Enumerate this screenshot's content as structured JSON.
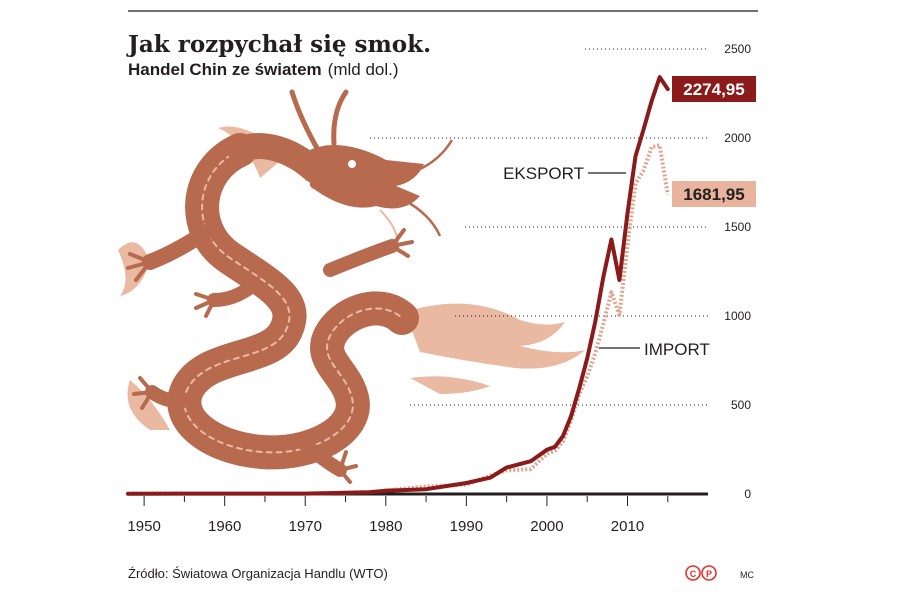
{
  "chart_data": {
    "type": "line",
    "title": "Jak rozpychał się smok.",
    "subtitle": "Handel Chin ze światem",
    "unit": "(mld dol.)",
    "xlabel": "",
    "ylabel": "",
    "xlim": [
      1948,
      2019
    ],
    "ylim": [
      0,
      2500
    ],
    "x_ticks": [
      1950,
      1960,
      1970,
      1980,
      1990,
      2000,
      2010
    ],
    "x_tick_labels": [
      "1950",
      "1960",
      "1970",
      "1980",
      "1990",
      "2000",
      "2010"
    ],
    "y_ticks": [
      0,
      500,
      1000,
      1500,
      2000,
      2500
    ],
    "y_tick_labels": [
      "0",
      "500",
      "1000",
      "1500",
      "2000",
      "2500"
    ],
    "grid": "dotted horizontal",
    "series": [
      {
        "name": "EKSPORT",
        "color": "#8b1a1a",
        "style": "solid",
        "x": [
          1948,
          1955,
          1965,
          1970,
          1975,
          1978,
          1980,
          1985,
          1990,
          1993,
          1995,
          1998,
          2000,
          2001,
          2002,
          2003,
          2004,
          2005,
          2006,
          2007,
          2008,
          2009,
          2010,
          2011,
          2012,
          2013,
          2014,
          2015
        ],
        "values": [
          1,
          2,
          2,
          2,
          7,
          10,
          18,
          27,
          62,
          92,
          149,
          184,
          249,
          266,
          326,
          438,
          593,
          762,
          969,
          1218,
          1430,
          1202,
          1578,
          1898,
          2049,
          2209,
          2342,
          2274.95
        ]
      },
      {
        "name": "IMPORT",
        "color": "#e0a48e",
        "style": "dotted",
        "x": [
          1948,
          1955,
          1965,
          1970,
          1975,
          1978,
          1980,
          1985,
          1990,
          1993,
          1995,
          1998,
          2000,
          2001,
          2002,
          2003,
          2004,
          2005,
          2006,
          2007,
          2008,
          2009,
          2010,
          2011,
          2012,
          2013,
          2014,
          2015
        ],
        "values": [
          1,
          2,
          2,
          2,
          7,
          11,
          20,
          42,
          53,
          104,
          132,
          140,
          225,
          243,
          295,
          413,
          561,
          660,
          791,
          956,
          1133,
          1006,
          1396,
          1743,
          1818,
          1950,
          1959,
          1681.95
        ]
      }
    ],
    "end_labels": [
      "2274,95",
      "1681,95"
    ],
    "legend": "inline labels on lines"
  },
  "source": "Źródło: Światowa Organizacja Handlu (WTO)",
  "author": "MC",
  "logo_text": "©P",
  "colors": {
    "export": "#8b1a1a",
    "import": "#e0a48e",
    "dragon": "#b86a4e",
    "dragon_light": "#e9b9a2"
  }
}
